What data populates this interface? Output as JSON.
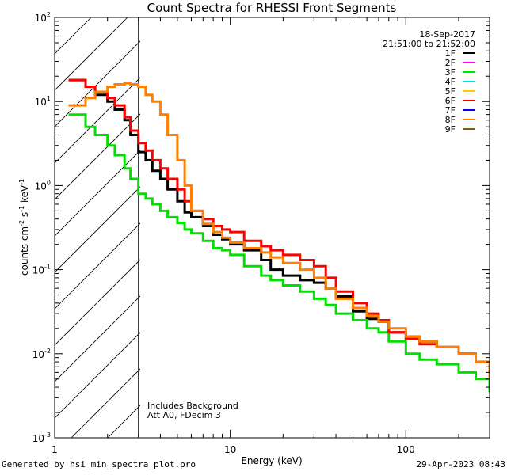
{
  "chart_data": {
    "type": "line",
    "title": "Count Spectra for RHESSI Front Segments",
    "xlabel": "Energy (keV)",
    "ylabel": "counts cm^-2 s^-1 keV^-1",
    "xscale": "log",
    "yscale": "log",
    "xlim": [
      1.0,
      300.0
    ],
    "ylim": [
      0.001,
      100.0
    ],
    "x_tick_labels": [
      {
        "value": 1,
        "label": "1"
      },
      {
        "value": 10,
        "label": "10"
      },
      {
        "value": 100,
        "label": "100"
      }
    ],
    "y_tick_labels": [
      {
        "value": 0.001,
        "mantissa": "10",
        "exponent": "-3"
      },
      {
        "value": 0.01,
        "mantissa": "10",
        "exponent": "-2"
      },
      {
        "value": 0.1,
        "mantissa": "10",
        "exponent": "-1"
      },
      {
        "value": 1,
        "mantissa": "10",
        "exponent": "0"
      },
      {
        "value": 10,
        "mantissa": "10",
        "exponent": "1"
      },
      {
        "value": 100,
        "mantissa": "10",
        "exponent": "2"
      }
    ],
    "date": "18-Sep-2017",
    "time_range": "21:51:00 to 21:52:00",
    "annotations": [
      "Includes Background",
      "Att A0, FDecim 3"
    ],
    "excluded_region": {
      "x_min": 1.0,
      "x_max": 3.0,
      "style": "hatched"
    },
    "legend": [
      {
        "name": "1F",
        "color": "#000000"
      },
      {
        "name": "2F",
        "color": "#ff00ff"
      },
      {
        "name": "3F",
        "color": "#00e000"
      },
      {
        "name": "4F",
        "color": "#00d8ff"
      },
      {
        "name": "5F",
        "color": "#ffc800"
      },
      {
        "name": "6F",
        "color": "#ff0000"
      },
      {
        "name": "7F",
        "color": "#0000ff"
      },
      {
        "name": "8F",
        "color": "#ff7f00"
      },
      {
        "name": "9F",
        "color": "#7a6000"
      }
    ],
    "series": [
      {
        "name": "1F",
        "color": "#000000",
        "x": [
          1.2,
          1.5,
          1.7,
          2.0,
          2.2,
          2.5,
          2.7,
          3.0,
          3.3,
          3.6,
          4.0,
          4.4,
          5.0,
          5.5,
          6.0,
          7.0,
          8.0,
          9.0,
          10.0,
          12.0,
          15.0,
          17.0,
          20.0,
          25.0,
          30.0,
          35.0,
          40.0,
          50.0,
          60.0,
          70.0,
          80.0,
          100.0,
          120.0,
          150.0,
          200.0,
          250.0,
          300.0
        ],
        "y": [
          18.0,
          15.0,
          12.0,
          10.0,
          8.0,
          6.0,
          4.0,
          2.5,
          2.0,
          1.5,
          1.2,
          0.9,
          0.65,
          0.48,
          0.42,
          0.33,
          0.26,
          0.23,
          0.2,
          0.17,
          0.13,
          0.1,
          0.085,
          0.075,
          0.07,
          0.06,
          0.048,
          0.032,
          0.026,
          0.024,
          0.018,
          0.016,
          0.014,
          0.012,
          0.01,
          0.008,
          0.0045
        ]
      },
      {
        "name": "3F",
        "color": "#00e000",
        "x": [
          1.2,
          1.5,
          1.7,
          2.0,
          2.2,
          2.5,
          2.7,
          3.0,
          3.3,
          3.6,
          4.0,
          4.4,
          5.0,
          5.5,
          6.0,
          7.0,
          8.0,
          9.0,
          10.0,
          12.0,
          15.0,
          17.0,
          20.0,
          25.0,
          30.0,
          35.0,
          40.0,
          50.0,
          60.0,
          70.0,
          80.0,
          100.0,
          120.0,
          150.0,
          200.0,
          250.0,
          300.0
        ],
        "y": [
          7.0,
          5.0,
          4.0,
          3.0,
          2.3,
          1.6,
          1.2,
          0.8,
          0.7,
          0.6,
          0.5,
          0.42,
          0.36,
          0.3,
          0.27,
          0.22,
          0.18,
          0.17,
          0.15,
          0.11,
          0.085,
          0.075,
          0.065,
          0.055,
          0.045,
          0.038,
          0.03,
          0.025,
          0.02,
          0.018,
          0.014,
          0.01,
          0.0085,
          0.0075,
          0.006,
          0.005,
          0.0035
        ]
      },
      {
        "name": "6F",
        "color": "#ff0000",
        "x": [
          1.2,
          1.5,
          1.7,
          2.0,
          2.2,
          2.5,
          2.7,
          3.0,
          3.3,
          3.6,
          4.0,
          4.4,
          5.0,
          5.5,
          6.0,
          7.0,
          8.0,
          9.0,
          10.0,
          12.0,
          15.0,
          17.0,
          20.0,
          25.0,
          30.0,
          35.0,
          40.0,
          50.0,
          60.0,
          70.0,
          80.0,
          100.0,
          120.0,
          150.0,
          200.0,
          250.0,
          300.0
        ],
        "y": [
          18.0,
          15.0,
          13.0,
          11.0,
          9.0,
          6.5,
          4.5,
          3.2,
          2.6,
          2.0,
          1.6,
          1.2,
          0.9,
          0.65,
          0.5,
          0.4,
          0.33,
          0.3,
          0.28,
          0.22,
          0.19,
          0.17,
          0.15,
          0.13,
          0.11,
          0.08,
          0.055,
          0.04,
          0.03,
          0.025,
          0.018,
          0.015,
          0.013,
          0.012,
          0.01,
          0.008,
          0.005
        ]
      },
      {
        "name": "8F",
        "color": "#ff7f00",
        "x": [
          1.2,
          1.5,
          1.7,
          2.0,
          2.2,
          2.5,
          2.7,
          3.0,
          3.3,
          3.6,
          4.0,
          4.4,
          5.0,
          5.5,
          6.0,
          7.0,
          8.0,
          9.0,
          10.0,
          12.0,
          15.0,
          17.0,
          20.0,
          25.0,
          30.0,
          35.0,
          40.0,
          50.0,
          60.0,
          70.0,
          80.0,
          100.0,
          120.0,
          150.0,
          200.0,
          250.0,
          300.0
        ],
        "y": [
          9.0,
          11.0,
          13.0,
          15.0,
          16.0,
          16.5,
          16.0,
          15.0,
          12.0,
          10.0,
          7.0,
          4.0,
          2.0,
          1.0,
          0.5,
          0.35,
          0.28,
          0.24,
          0.21,
          0.18,
          0.16,
          0.14,
          0.12,
          0.1,
          0.08,
          0.06,
          0.045,
          0.035,
          0.028,
          0.024,
          0.02,
          0.016,
          0.014,
          0.012,
          0.01,
          0.008,
          0.005
        ]
      }
    ]
  },
  "footer": {
    "left": "Generated by hsi_min_spectra_plot.pro",
    "right": "29-Apr-2023 08:43"
  }
}
